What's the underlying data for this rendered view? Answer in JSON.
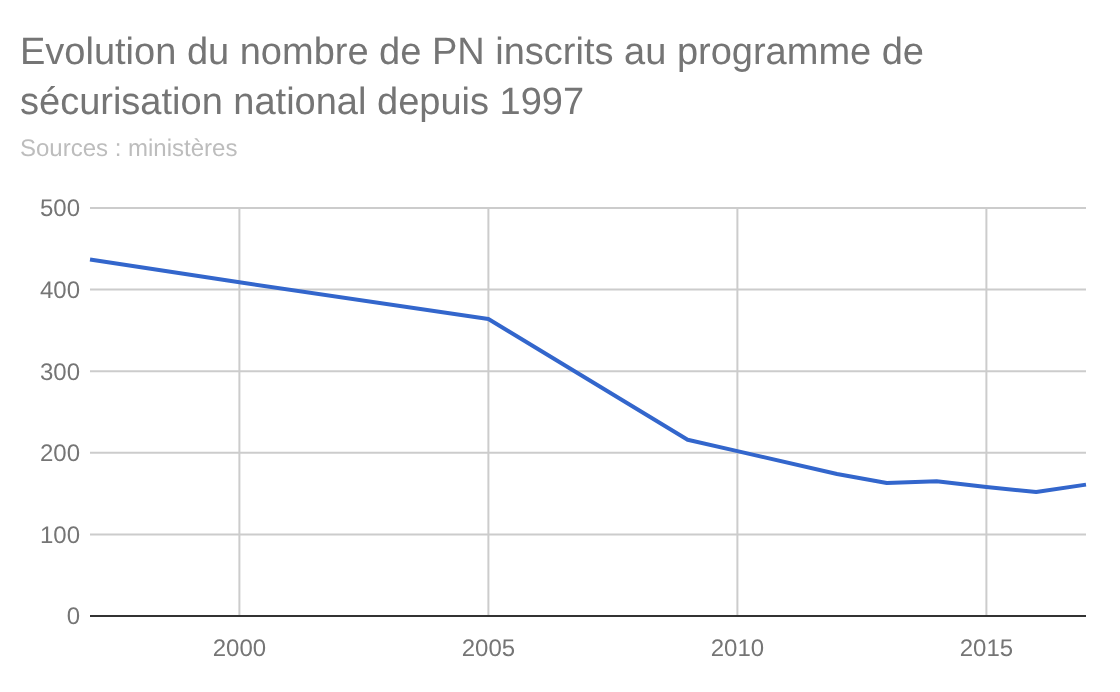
{
  "chart_data": {
    "type": "line",
    "title": "Evolution du nombre de PN inscrits au programme de sécurisation national depuis 1997",
    "annotations": [
      "Sources : ministères"
    ],
    "x": [
      1997,
      2000,
      2005,
      2009,
      2010,
      2012,
      2013,
      2014,
      2015,
      2016,
      2017
    ],
    "series": [
      {
        "color": "#3366cc",
        "values": [
          437,
          409,
          364,
          216,
          202,
          174,
          163,
          165,
          158,
          152,
          161
        ]
      }
    ],
    "xlim": [
      1997,
      2017
    ],
    "xticks": [
      2000,
      2005,
      2010,
      2015
    ],
    "ylim": [
      0,
      500
    ],
    "yticks": [
      0,
      100,
      200,
      300,
      400,
      500
    ],
    "grid": true
  }
}
